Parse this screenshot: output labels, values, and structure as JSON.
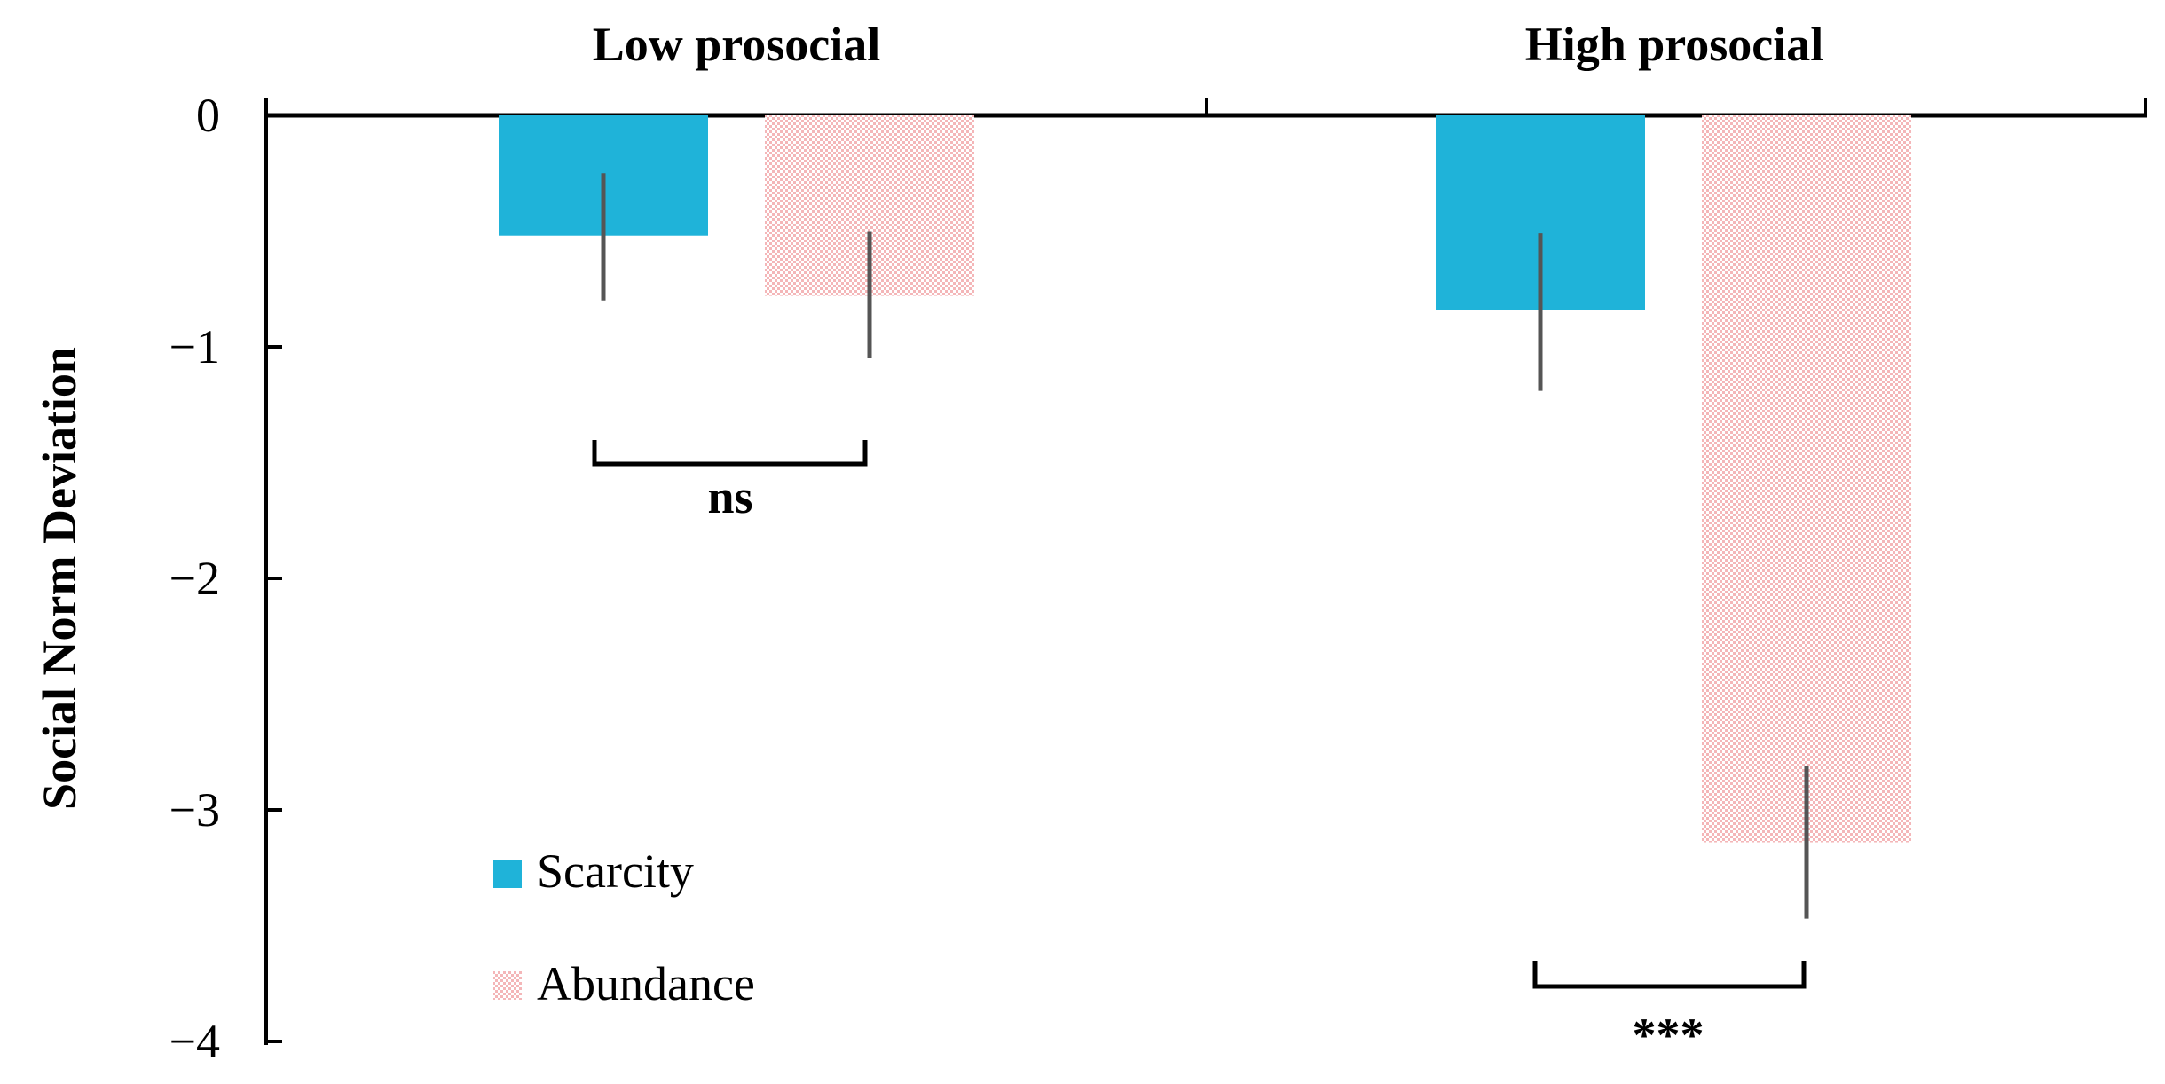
{
  "chart_data": {
    "type": "bar",
    "categories": [
      "Low prosocial",
      "High prosocial"
    ],
    "ylabel": "Social Norm Deviation",
    "ylim": [
      -4,
      0
    ],
    "yticks": [
      0,
      -1,
      -2,
      -3,
      -4
    ],
    "ytick_labels": [
      "0",
      "−1",
      "−2",
      "−3",
      "−4"
    ],
    "series": [
      {
        "name": "Scarcity",
        "color": "#1fb3d9",
        "pattern": "solid",
        "values": [
          -0.52,
          -0.84
        ],
        "error_low": [
          -0.8,
          -1.19
        ],
        "error_high": [
          -0.25,
          -0.51
        ]
      },
      {
        "name": "Abundance",
        "color": "#f4b6b8",
        "pattern": "dotted",
        "values": [
          -0.78,
          -3.14
        ],
        "error_low": [
          -1.05,
          -3.47
        ],
        "error_high": [
          -0.5,
          -2.81
        ]
      }
    ],
    "legend_placement": "bottom-left",
    "annotations": [
      {
        "group": "Low prosocial",
        "label": "ns"
      },
      {
        "group": "High prosocial",
        "label": "***"
      }
    ]
  }
}
